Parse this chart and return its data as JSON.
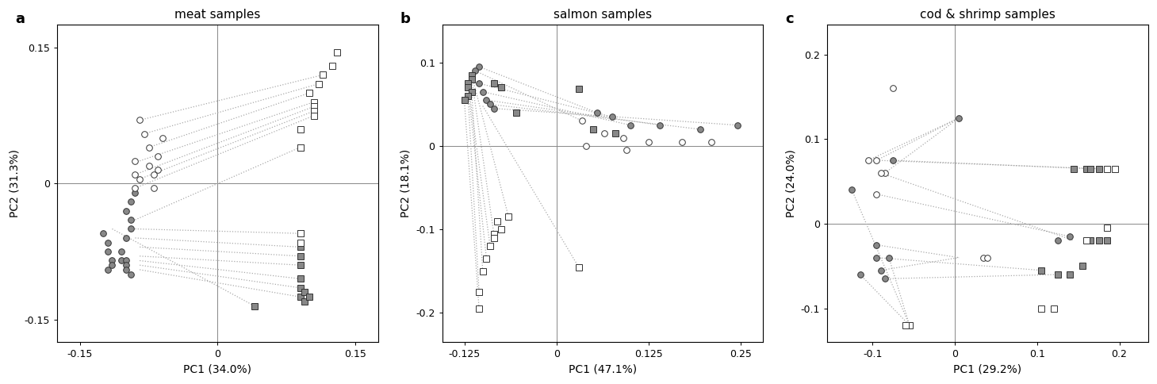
{
  "panels": [
    {
      "title": "meat samples",
      "xlabel": "PC1 (34.0%)",
      "ylabel": "PC2 (31.3%)",
      "xlim": [
        -0.175,
        0.175
      ],
      "ylim": [
        -0.175,
        0.175
      ],
      "xticks": [
        -0.15,
        0.0,
        0.15
      ],
      "yticks": [
        -0.15,
        0.0,
        0.15
      ],
      "label": "a",
      "pairs": [
        [
          [
            -0.085,
            0.025
          ],
          [
            0.105,
            0.09
          ]
        ],
        [
          [
            -0.09,
            0.01
          ],
          [
            0.105,
            0.085
          ]
        ],
        [
          [
            -0.085,
            0.005
          ],
          [
            0.105,
            0.08
          ]
        ],
        [
          [
            -0.09,
            -0.005
          ],
          [
            0.105,
            0.075
          ]
        ],
        [
          [
            -0.085,
            0.07
          ],
          [
            0.115,
            0.12
          ]
        ],
        [
          [
            -0.08,
            0.055
          ],
          [
            0.11,
            0.11
          ]
        ],
        [
          [
            -0.075,
            0.04
          ],
          [
            0.1,
            0.1
          ]
        ],
        [
          [
            -0.09,
            -0.04
          ],
          [
            0.09,
            0.04
          ]
        ],
        [
          [
            -0.09,
            -0.05
          ],
          [
            0.09,
            -0.055
          ]
        ],
        [
          [
            -0.09,
            -0.06
          ],
          [
            0.09,
            -0.07
          ]
        ],
        [
          [
            -0.085,
            -0.07
          ],
          [
            0.09,
            -0.08
          ]
        ],
        [
          [
            -0.085,
            -0.08
          ],
          [
            0.09,
            -0.09
          ]
        ],
        [
          [
            -0.085,
            -0.085
          ],
          [
            0.09,
            -0.105
          ]
        ],
        [
          [
            -0.085,
            -0.09
          ],
          [
            0.09,
            -0.115
          ]
        ],
        [
          [
            -0.085,
            -0.095
          ],
          [
            0.09,
            -0.125
          ]
        ],
        [
          [
            -0.115,
            -0.05
          ],
          [
            0.04,
            -0.135
          ]
        ]
      ],
      "gray_circles": [
        [
          -0.125,
          -0.055
        ],
        [
          -0.12,
          -0.065
        ],
        [
          -0.12,
          -0.075
        ],
        [
          -0.115,
          -0.085
        ],
        [
          -0.12,
          -0.095
        ],
        [
          -0.115,
          -0.09
        ],
        [
          -0.105,
          -0.075
        ],
        [
          -0.105,
          -0.085
        ],
        [
          -0.1,
          -0.085
        ],
        [
          -0.1,
          -0.09
        ],
        [
          -0.1,
          -0.095
        ],
        [
          -0.095,
          -0.1
        ],
        [
          -0.1,
          -0.06
        ],
        [
          -0.095,
          -0.05
        ],
        [
          -0.095,
          -0.04
        ],
        [
          -0.1,
          -0.03
        ],
        [
          -0.095,
          -0.02
        ],
        [
          -0.09,
          -0.01
        ]
      ],
      "white_circles": [
        [
          -0.09,
          0.025
        ],
        [
          -0.09,
          0.01
        ],
        [
          -0.085,
          0.005
        ],
        [
          -0.09,
          -0.005
        ],
        [
          -0.085,
          0.07
        ],
        [
          -0.08,
          0.055
        ],
        [
          -0.075,
          0.04
        ],
        [
          -0.075,
          0.02
        ],
        [
          -0.07,
          0.01
        ],
        [
          -0.065,
          0.015
        ],
        [
          -0.07,
          -0.005
        ],
        [
          -0.065,
          0.03
        ],
        [
          -0.06,
          0.05
        ]
      ],
      "gray_squares": [
        [
          0.09,
          -0.105
        ],
        [
          0.09,
          -0.115
        ],
        [
          0.09,
          -0.125
        ],
        [
          0.095,
          -0.12
        ],
        [
          0.095,
          -0.13
        ],
        [
          0.1,
          -0.125
        ],
        [
          0.09,
          -0.08
        ],
        [
          0.09,
          -0.09
        ],
        [
          0.09,
          -0.07
        ],
        [
          0.04,
          -0.135
        ],
        [
          0.09,
          -0.055
        ]
      ],
      "white_squares": [
        [
          0.105,
          0.09
        ],
        [
          0.105,
          0.085
        ],
        [
          0.105,
          0.08
        ],
        [
          0.105,
          0.075
        ],
        [
          0.115,
          0.12
        ],
        [
          0.11,
          0.11
        ],
        [
          0.1,
          0.1
        ],
        [
          0.13,
          0.145
        ],
        [
          0.125,
          0.13
        ],
        [
          0.09,
          0.04
        ],
        [
          0.09,
          -0.055
        ],
        [
          0.09,
          -0.065
        ],
        [
          0.09,
          0.04
        ],
        [
          0.09,
          0.06
        ]
      ]
    },
    {
      "title": "salmon samples",
      "xlabel": "PC1 (47.1%)",
      "ylabel": "PC2 (18.1%)",
      "xlim": [
        -0.155,
        0.28
      ],
      "ylim": [
        -0.235,
        0.145
      ],
      "xticks": [
        -0.125,
        0.0,
        0.125,
        0.25
      ],
      "yticks": [
        -0.2,
        -0.1,
        0.0,
        0.1
      ],
      "label": "b",
      "pairs": [
        [
          [
            -0.105,
            0.095
          ],
          [
            0.055,
            0.04
          ]
        ],
        [
          [
            -0.11,
            0.09
          ],
          [
            0.035,
            0.03
          ]
        ],
        [
          [
            -0.105,
            0.075
          ],
          [
            0.075,
            0.035
          ]
        ],
        [
          [
            -0.1,
            0.065
          ],
          [
            0.1,
            0.025
          ]
        ],
        [
          [
            -0.095,
            0.055
          ],
          [
            0.14,
            0.025
          ]
        ],
        [
          [
            -0.09,
            0.05
          ],
          [
            0.195,
            0.02
          ]
        ],
        [
          [
            -0.085,
            0.045
          ],
          [
            0.245,
            0.025
          ]
        ],
        [
          [
            -0.115,
            0.085
          ],
          [
            -0.065,
            -0.085
          ]
        ],
        [
          [
            -0.115,
            0.08
          ],
          [
            -0.085,
            -0.105
          ]
        ],
        [
          [
            -0.12,
            0.075
          ],
          [
            -0.09,
            -0.12
          ]
        ],
        [
          [
            -0.12,
            0.07
          ],
          [
            -0.095,
            -0.135
          ]
        ],
        [
          [
            -0.115,
            0.065
          ],
          [
            -0.1,
            -0.15
          ]
        ],
        [
          [
            -0.12,
            0.06
          ],
          [
            -0.105,
            -0.175
          ]
        ],
        [
          [
            -0.125,
            0.055
          ],
          [
            -0.105,
            -0.195
          ]
        ],
        [
          [
            -0.1,
            0.048
          ],
          [
            0.03,
            -0.145
          ]
        ]
      ],
      "gray_circles": [
        [
          -0.105,
          0.095
        ],
        [
          -0.11,
          0.09
        ],
        [
          -0.105,
          0.075
        ],
        [
          -0.1,
          0.065
        ],
        [
          -0.095,
          0.055
        ],
        [
          -0.09,
          0.05
        ],
        [
          -0.085,
          0.045
        ],
        [
          0.055,
          0.04
        ],
        [
          0.075,
          0.035
        ],
        [
          0.1,
          0.025
        ],
        [
          0.14,
          0.025
        ],
        [
          0.195,
          0.02
        ],
        [
          0.245,
          0.025
        ]
      ],
      "white_circles": [
        [
          0.035,
          0.03
        ],
        [
          0.065,
          0.015
        ],
        [
          0.09,
          0.01
        ],
        [
          0.125,
          0.005
        ],
        [
          0.17,
          0.005
        ],
        [
          0.21,
          0.005
        ],
        [
          0.04,
          0.0
        ],
        [
          0.095,
          -0.005
        ]
      ],
      "gray_squares": [
        [
          -0.115,
          0.085
        ],
        [
          -0.115,
          0.08
        ],
        [
          -0.12,
          0.075
        ],
        [
          -0.12,
          0.07
        ],
        [
          -0.115,
          0.065
        ],
        [
          -0.12,
          0.06
        ],
        [
          -0.125,
          0.055
        ],
        [
          -0.085,
          0.075
        ],
        [
          -0.075,
          0.07
        ],
        [
          0.03,
          0.068
        ],
        [
          -0.055,
          0.04
        ],
        [
          0.05,
          0.02
        ],
        [
          0.08,
          0.015
        ]
      ],
      "white_squares": [
        [
          -0.065,
          -0.085
        ],
        [
          -0.085,
          -0.105
        ],
        [
          -0.09,
          -0.12
        ],
        [
          -0.095,
          -0.135
        ],
        [
          -0.1,
          -0.15
        ],
        [
          -0.105,
          -0.175
        ],
        [
          -0.105,
          -0.195
        ],
        [
          0.03,
          -0.145
        ],
        [
          -0.08,
          -0.09
        ],
        [
          -0.085,
          -0.11
        ],
        [
          -0.075,
          -0.1
        ]
      ]
    },
    {
      "title": "cod & shrimp samples",
      "xlabel": "PC1 (29.2%)",
      "ylabel": "PC2 (24.0%)",
      "xlim": [
        -0.155,
        0.235
      ],
      "ylim": [
        -0.14,
        0.235
      ],
      "xticks": [
        -0.1,
        0.0,
        0.1,
        0.2
      ],
      "yticks": [
        -0.1,
        0.0,
        0.1,
        0.2
      ],
      "label": "c",
      "pairs": [
        [
          [
            -0.105,
            0.075
          ],
          [
            0.005,
            0.125
          ]
        ],
        [
          [
            -0.095,
            0.075
          ],
          [
            0.005,
            0.125
          ]
        ],
        [
          [
            -0.085,
            0.06
          ],
          [
            0.005,
            0.125
          ]
        ],
        [
          [
            -0.095,
            0.035
          ],
          [
            0.14,
            -0.015
          ]
        ],
        [
          [
            -0.09,
            0.06
          ],
          [
            0.145,
            -0.02
          ]
        ],
        [
          [
            -0.095,
            -0.025
          ],
          [
            0.005,
            -0.04
          ]
        ],
        [
          [
            -0.09,
            -0.055
          ],
          [
            0.005,
            -0.04
          ]
        ],
        [
          [
            -0.085,
            -0.065
          ],
          [
            0.125,
            -0.06
          ]
        ],
        [
          [
            -0.095,
            -0.04
          ],
          [
            0.105,
            -0.055
          ]
        ],
        [
          [
            -0.125,
            0.04
          ],
          [
            -0.055,
            -0.12
          ]
        ],
        [
          [
            -0.115,
            -0.06
          ],
          [
            -0.055,
            -0.12
          ]
        ],
        [
          [
            -0.08,
            -0.04
          ],
          [
            -0.055,
            -0.12
          ]
        ],
        [
          [
            -0.075,
            0.075
          ],
          [
            0.165,
            0.065
          ]
        ],
        [
          [
            -0.095,
            0.075
          ],
          [
            0.175,
            0.065
          ]
        ]
      ],
      "gray_circles": [
        [
          -0.125,
          0.04
        ],
        [
          -0.095,
          -0.025
        ],
        [
          -0.09,
          -0.055
        ],
        [
          -0.085,
          -0.065
        ],
        [
          -0.115,
          -0.06
        ],
        [
          -0.08,
          -0.04
        ],
        [
          -0.075,
          0.075
        ],
        [
          -0.095,
          -0.04
        ],
        [
          0.005,
          0.125
        ],
        [
          0.14,
          -0.015
        ],
        [
          0.125,
          -0.02
        ]
      ],
      "white_circles": [
        [
          -0.105,
          0.075
        ],
        [
          -0.095,
          0.075
        ],
        [
          -0.085,
          0.06
        ],
        [
          -0.095,
          0.035
        ],
        [
          -0.09,
          0.06
        ],
        [
          -0.075,
          0.16
        ],
        [
          0.035,
          -0.04
        ],
        [
          0.04,
          -0.04
        ]
      ],
      "gray_squares": [
        [
          0.145,
          0.065
        ],
        [
          0.16,
          0.065
        ],
        [
          0.165,
          0.065
        ],
        [
          0.175,
          0.065
        ],
        [
          0.185,
          -0.02
        ],
        [
          0.175,
          -0.02
        ],
        [
          0.165,
          -0.02
        ],
        [
          0.155,
          -0.05
        ],
        [
          0.14,
          -0.06
        ],
        [
          0.105,
          -0.055
        ],
        [
          0.125,
          -0.06
        ]
      ],
      "white_squares": [
        [
          -0.055,
          -0.12
        ],
        [
          -0.06,
          -0.12
        ],
        [
          0.12,
          -0.1
        ],
        [
          0.105,
          -0.1
        ],
        [
          0.16,
          -0.02
        ],
        [
          0.185,
          -0.005
        ],
        [
          0.195,
          0.065
        ],
        [
          0.185,
          0.065
        ]
      ]
    }
  ],
  "gray_color": "#888888",
  "white_color": "#ffffff",
  "edge_color": "#333333",
  "line_color": "#aaaaaa",
  "marker_size": 5.5,
  "line_width": 0.9,
  "tick_fontsize": 9,
  "label_fontsize": 10,
  "title_fontsize": 11,
  "panel_label_fontsize": 13
}
